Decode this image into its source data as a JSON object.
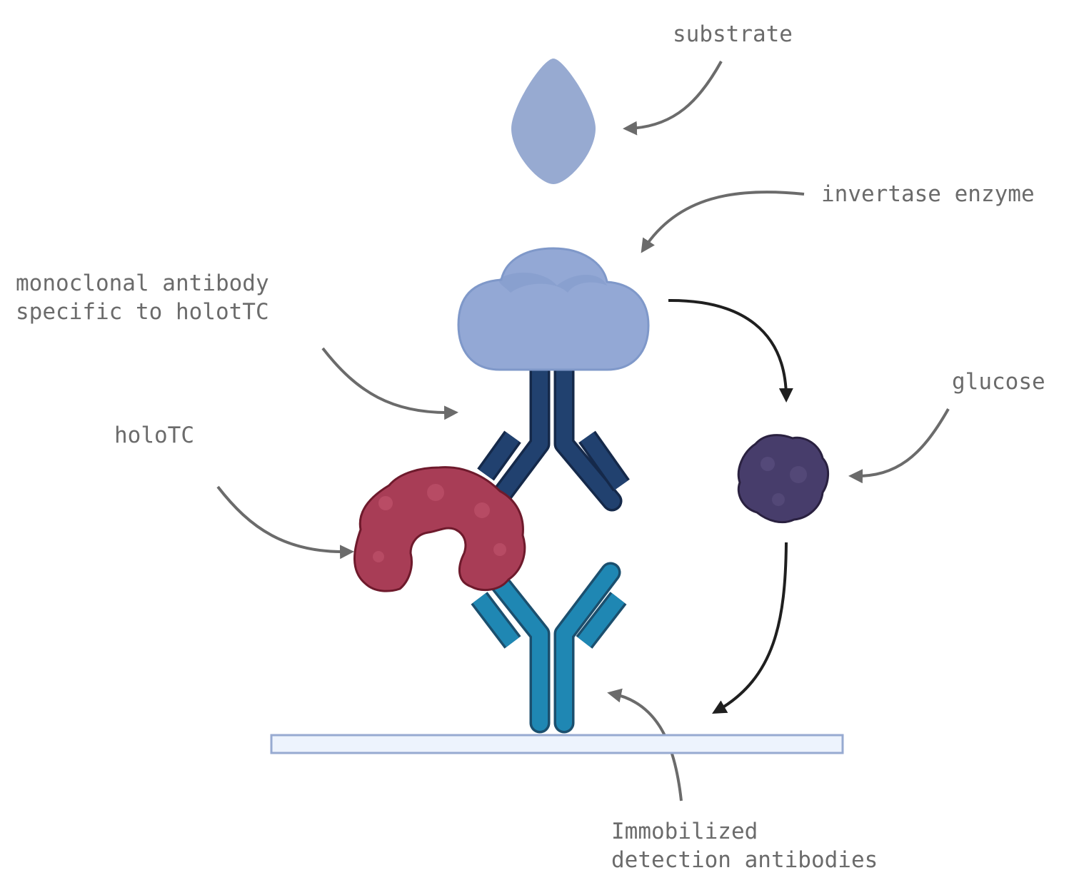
{
  "labels": {
    "substrate": "substrate",
    "invertase": "invertase enzyme",
    "antibody_line1": "monoclonal antibody",
    "antibody_line2": "specific to holotTC",
    "holotc": "holoTC",
    "glucose": "glucose",
    "immobilized_line1": "Immobilized",
    "immobilized_line2": "detection antibodies"
  },
  "colors": {
    "label_text": "#6b6b6b",
    "grey_arrow": "#6b6b6b",
    "black_arrow": "#1f1f1f",
    "substrate": "#97aad1",
    "enzyme": "#93a8d5",
    "enzyme_stroke": "#7f98c9",
    "antibody_dark": "#21416f",
    "antibody_light": "#1f87b3",
    "holotc": "#a83d56",
    "holotc_stroke": "#6e1a2c",
    "glucose": "#473d6b",
    "glucose_stroke": "#2a2140",
    "plate_fill": "#edf3fd",
    "plate_stroke": "#97aad1"
  }
}
